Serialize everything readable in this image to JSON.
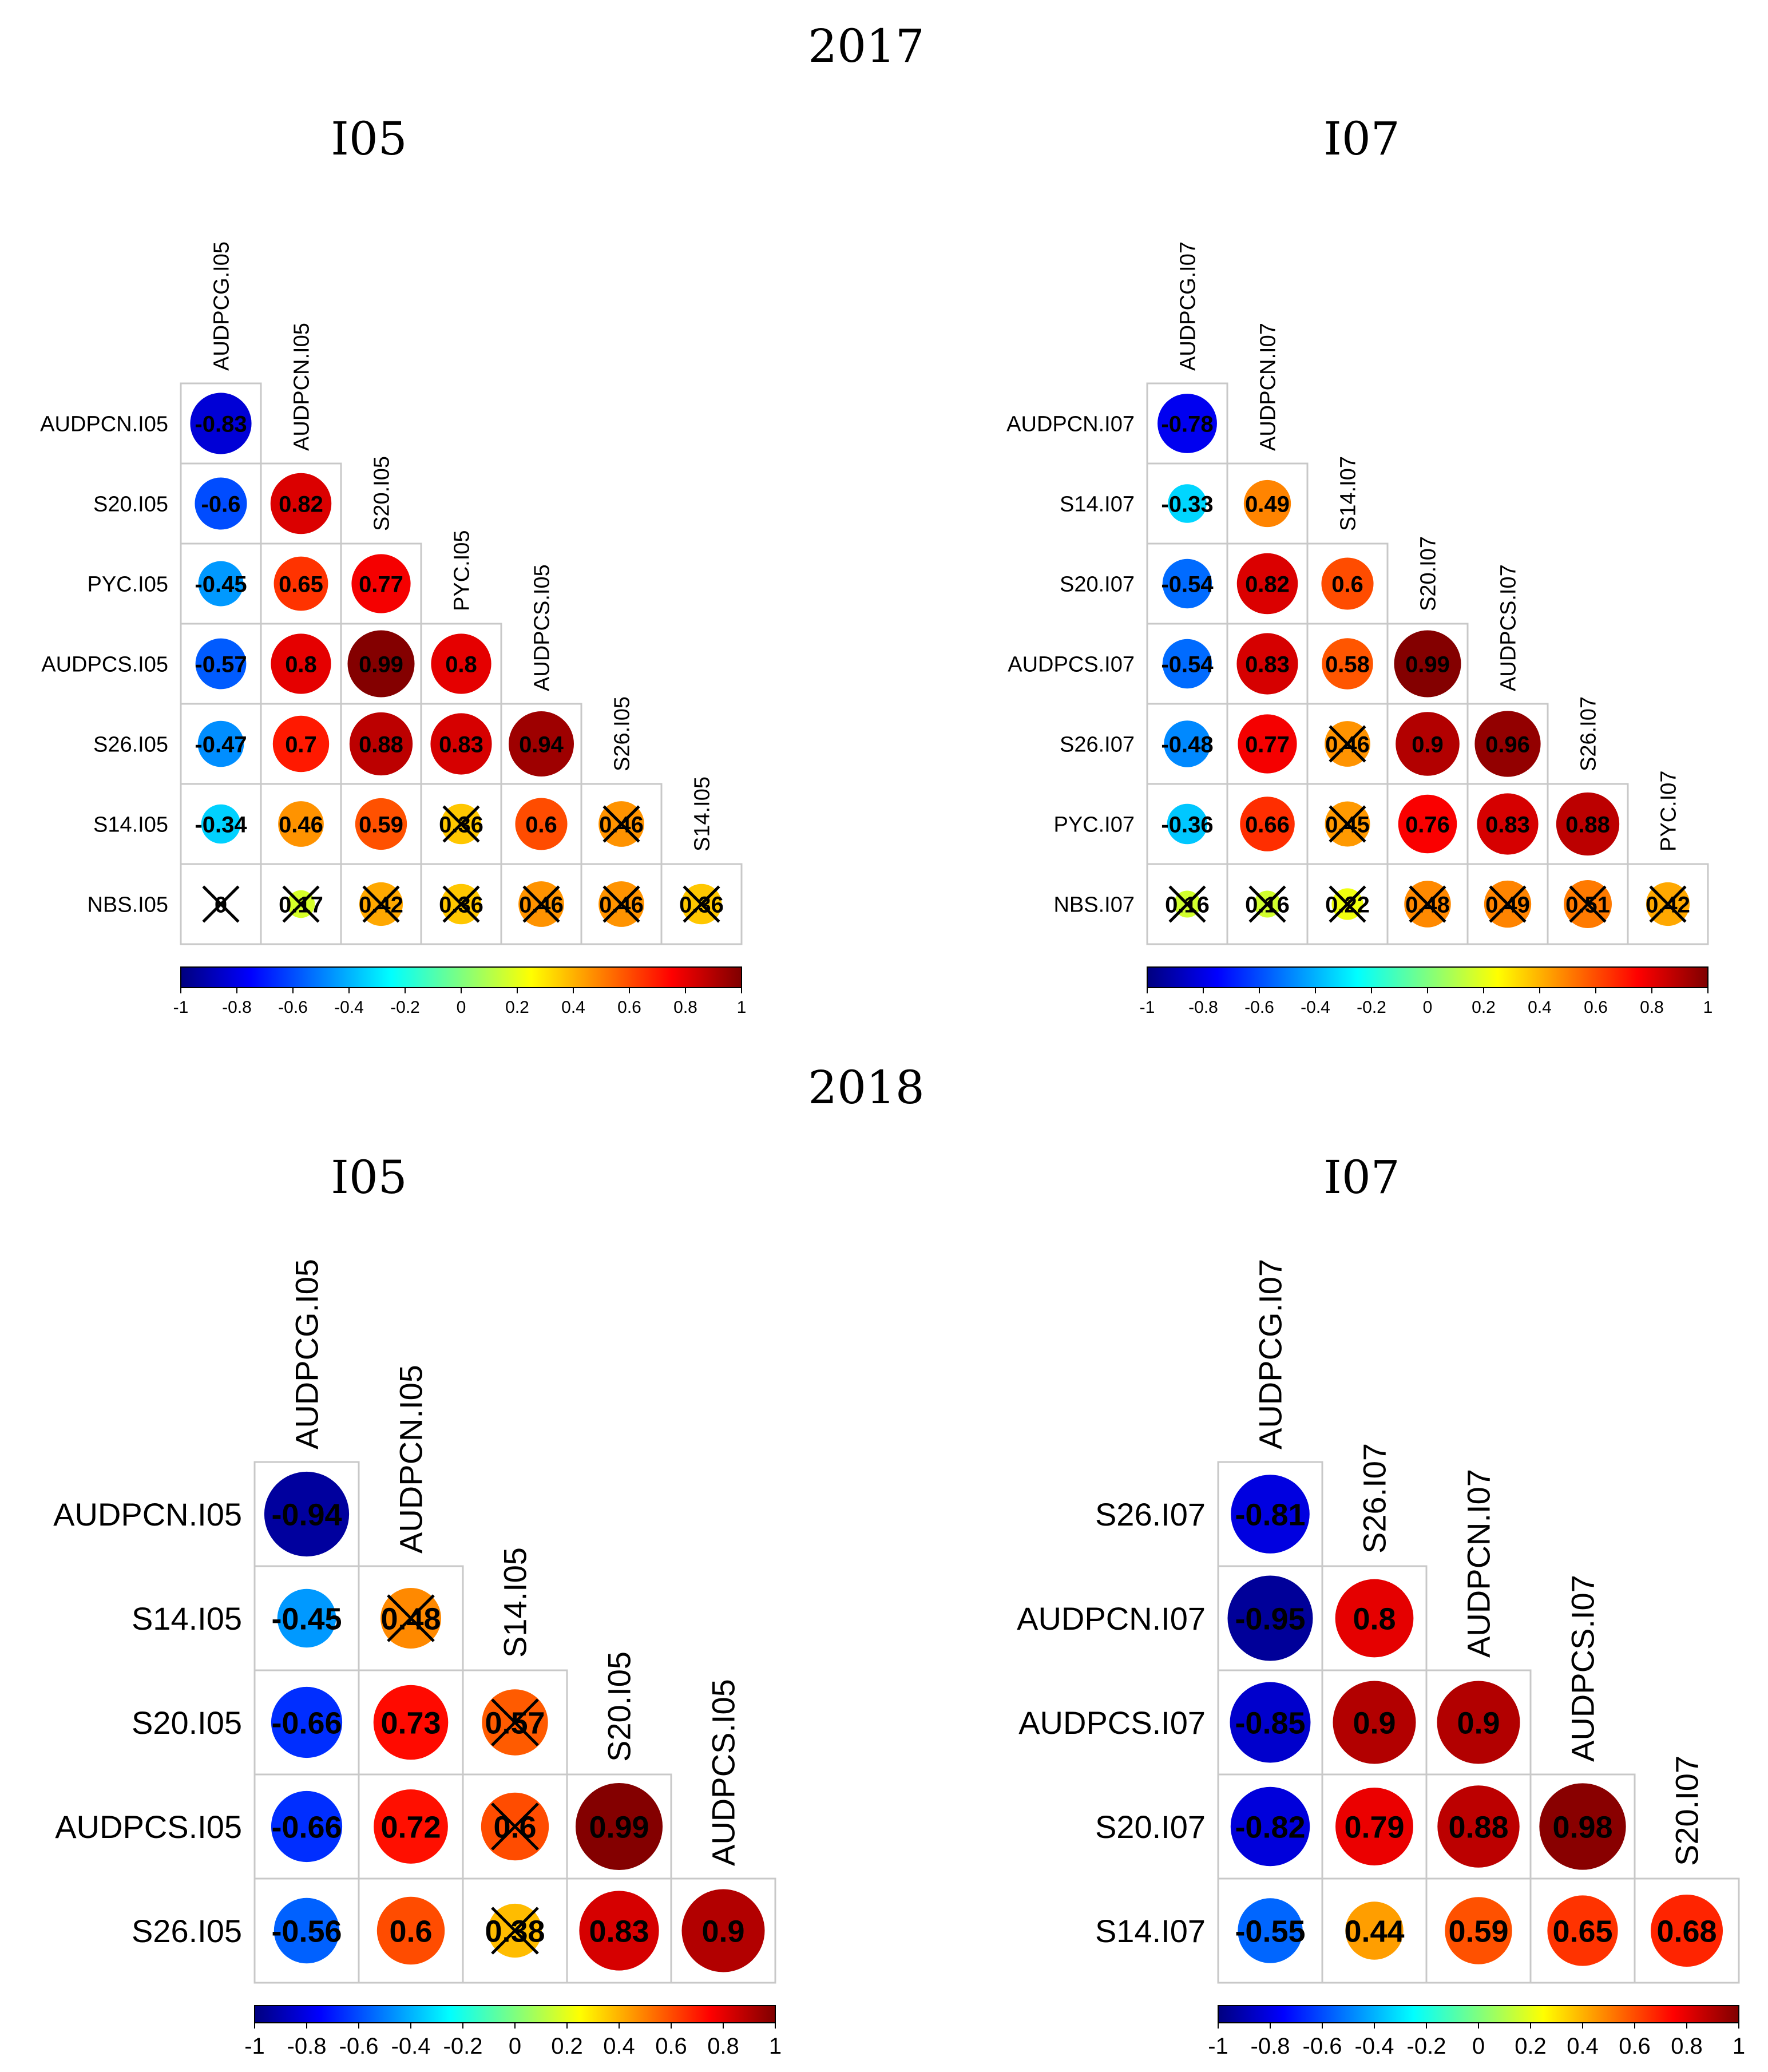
{
  "year_titles": [
    "2017",
    "2018"
  ],
  "colorbar": {
    "ticks": [
      "-1",
      "-0.8",
      "-0.6",
      "-0.4",
      "-0.2",
      "0",
      "0.2",
      "0.4",
      "0.6",
      "0.8",
      "1"
    ],
    "colors": [
      "#00007F",
      "#0000FF",
      "#007FFF",
      "#00FFFF",
      "#7FFF7F",
      "#FFFF00",
      "#FF7F00",
      "#FF0000",
      "#7F0000"
    ]
  },
  "chart_data": [
    {
      "type": "correlogram",
      "year": "2017",
      "title": "I05",
      "variables": [
        "AUDPCG.I05",
        "AUDPCN.I05",
        "S20.I05",
        "PYC.I05",
        "AUDPCS.I05",
        "S26.I05",
        "S14.I05",
        "NBS.I05"
      ],
      "matrix": [
        [
          -0.83
        ],
        [
          -0.6,
          0.82
        ],
        [
          -0.45,
          0.65,
          0.77
        ],
        [
          -0.57,
          0.8,
          0.99,
          0.8
        ],
        [
          -0.47,
          0.7,
          0.88,
          0.83,
          0.94
        ],
        [
          -0.34,
          0.46,
          0.59,
          0.36,
          0.6,
          0.46
        ],
        [
          0,
          0.17,
          0.42,
          0.36,
          0.46,
          0.46,
          0.36
        ]
      ],
      "labels": [
        [
          "-0.83"
        ],
        [
          "-0.6",
          "0.82"
        ],
        [
          "-0.45",
          "0.65",
          "0.77"
        ],
        [
          "-0.57",
          "0.8",
          "0.99",
          "0.8"
        ],
        [
          "-0.47",
          "0.7",
          "0.88",
          "0.83",
          "0.94"
        ],
        [
          "-0.34",
          "0.46",
          "0.59",
          "0.36",
          "0.6",
          "0.46"
        ],
        [
          "0",
          "0.17",
          "0.42",
          "0.36",
          "0.46",
          "0.46",
          "0.36"
        ]
      ],
      "not_significant": [
        [
          false
        ],
        [
          false,
          false
        ],
        [
          false,
          false,
          false
        ],
        [
          false,
          false,
          false,
          false
        ],
        [
          false,
          false,
          false,
          false,
          false
        ],
        [
          false,
          false,
          false,
          true,
          false,
          true
        ],
        [
          true,
          true,
          true,
          true,
          true,
          true,
          true
        ]
      ],
      "colorbar_range": [
        -1,
        1
      ]
    },
    {
      "type": "correlogram",
      "year": "2017",
      "title": "I07",
      "variables": [
        "AUDPCG.I07",
        "AUDPCN.I07",
        "S14.I07",
        "S20.I07",
        "AUDPCS.I07",
        "S26.I07",
        "PYC.I07",
        "NBS.I07"
      ],
      "matrix": [
        [
          -0.78
        ],
        [
          -0.33,
          0.49
        ],
        [
          -0.54,
          0.82,
          0.6
        ],
        [
          -0.54,
          0.83,
          0.58,
          0.99
        ],
        [
          -0.48,
          0.77,
          0.46,
          0.9,
          0.96
        ],
        [
          -0.36,
          0.66,
          0.45,
          0.76,
          0.83,
          0.88
        ],
        [
          0.16,
          0.16,
          0.22,
          0.48,
          0.49,
          0.51,
          0.42
        ]
      ],
      "labels": [
        [
          "-0.78"
        ],
        [
          "-0.33",
          "0.49"
        ],
        [
          "-0.54",
          "0.82",
          "0.6"
        ],
        [
          "-0.54",
          "0.83",
          "0.58",
          "0.99"
        ],
        [
          "-0.48",
          "0.77",
          "0.46",
          "0.9",
          "0.96"
        ],
        [
          "-0.36",
          "0.66",
          "0.45",
          "0.76",
          "0.83",
          "0.88"
        ],
        [
          "0.16",
          "0.16",
          "0.22",
          "0.48",
          "0.49",
          "0.51",
          "0.42"
        ]
      ],
      "not_significant": [
        [
          false
        ],
        [
          false,
          false
        ],
        [
          false,
          false,
          false
        ],
        [
          false,
          false,
          false,
          false
        ],
        [
          false,
          false,
          true,
          false,
          false
        ],
        [
          false,
          false,
          true,
          false,
          false,
          false
        ],
        [
          true,
          true,
          true,
          true,
          true,
          true,
          true
        ]
      ],
      "colorbar_range": [
        -1,
        1
      ]
    },
    {
      "type": "correlogram",
      "year": "2018",
      "title": "I05",
      "variables": [
        "AUDPCG.I05",
        "AUDPCN.I05",
        "S14.I05",
        "S20.I05",
        "AUDPCS.I05",
        "S26.I05"
      ],
      "matrix": [
        [
          -0.94
        ],
        [
          -0.45,
          0.48
        ],
        [
          -0.66,
          0.73,
          0.57
        ],
        [
          -0.66,
          0.72,
          0.6,
          0.99
        ],
        [
          -0.56,
          0.6,
          0.38,
          0.83,
          0.9
        ]
      ],
      "labels": [
        [
          "-0.94"
        ],
        [
          "-0.45",
          "0.48"
        ],
        [
          "-0.66",
          "0.73",
          "0.57"
        ],
        [
          "-0.66",
          "0.72",
          "0.6",
          "0.99"
        ],
        [
          "-0.56",
          "0.6",
          "0.38",
          "0.83",
          "0.9"
        ]
      ],
      "not_significant": [
        [
          false
        ],
        [
          false,
          true
        ],
        [
          false,
          false,
          true
        ],
        [
          false,
          false,
          true,
          false
        ],
        [
          false,
          false,
          true,
          false,
          false
        ]
      ],
      "colorbar_range": [
        -1,
        1
      ]
    },
    {
      "type": "correlogram",
      "year": "2018",
      "title": "I07",
      "variables": [
        "AUDPCG.I07",
        "S26.I07",
        "AUDPCN.I07",
        "AUDPCS.I07",
        "S20.I07",
        "S14.I07"
      ],
      "matrix": [
        [
          -0.81
        ],
        [
          -0.95,
          0.8
        ],
        [
          -0.85,
          0.9,
          0.9
        ],
        [
          -0.82,
          0.79,
          0.88,
          0.98
        ],
        [
          -0.55,
          0.44,
          0.59,
          0.65,
          0.68
        ]
      ],
      "labels": [
        [
          "-0.81"
        ],
        [
          "-0.95",
          "0.8"
        ],
        [
          "-0.85",
          "0.9",
          "0.9"
        ],
        [
          "-0.82",
          "0.79",
          "0.88",
          "0.98"
        ],
        [
          "-0.55",
          "0.44",
          "0.59",
          "0.65",
          "0.68"
        ]
      ],
      "not_significant": [
        [
          false
        ],
        [
          false,
          false
        ],
        [
          false,
          false,
          false
        ],
        [
          false,
          false,
          false,
          false
        ],
        [
          false,
          false,
          false,
          false,
          false
        ]
      ],
      "colorbar_range": [
        -1,
        1
      ]
    }
  ]
}
